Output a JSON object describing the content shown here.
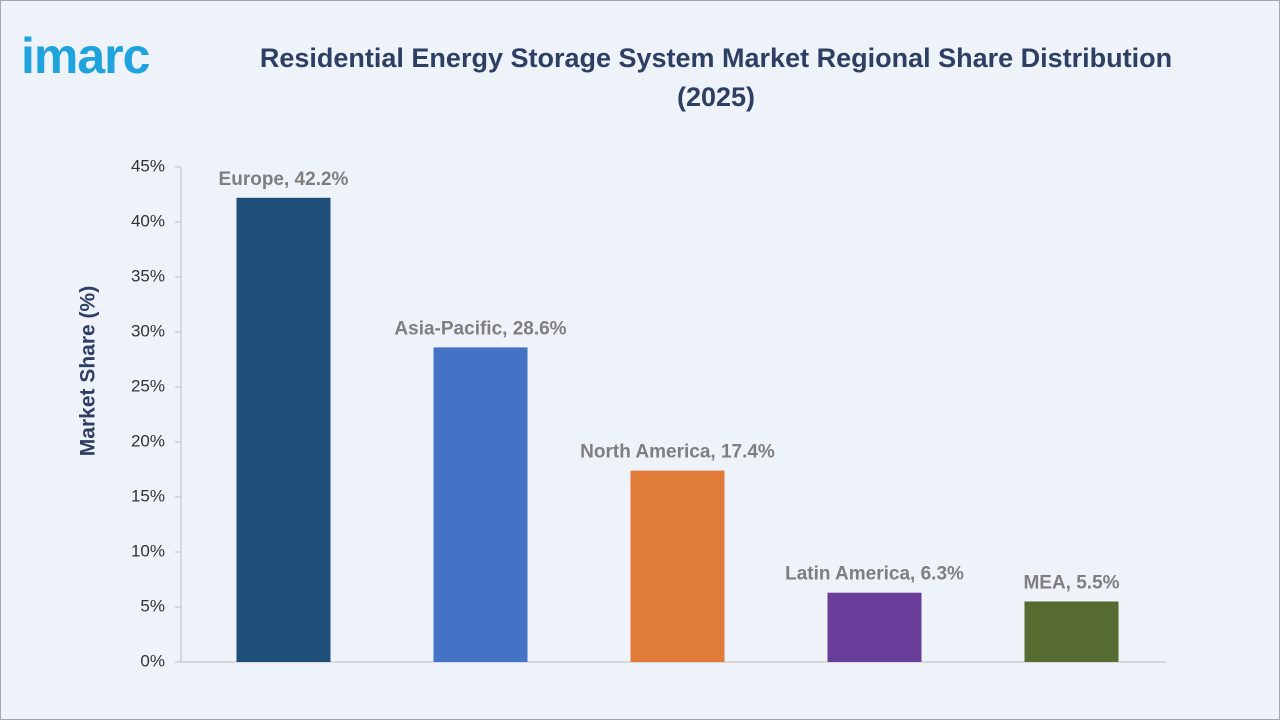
{
  "brand": "imarc",
  "chart_data": {
    "type": "bar",
    "title": "Residential Energy Storage System Market Regional Share Distribution (2025)",
    "y_label": "Market Share (%)",
    "values": [
      42.2,
      28.6,
      17.4,
      6.3,
      5.5
    ],
    "value_labels": [
      "Europe, 42.2%",
      "Asia-Pacific, 28.6%",
      "North America, 17.4%",
      "Latin America, 6.3%",
      "MEA, 5.5%"
    ],
    "colors": [
      "#1f4e79",
      "#4472c4",
      "#e07b39",
      "#6a3d9a",
      "#556b2f"
    ],
    "ylim": [
      0,
      45
    ],
    "yticks": [
      {
        "value": 0,
        "label": "0%"
      },
      {
        "value": 5,
        "label": "5%"
      },
      {
        "value": 10,
        "label": "10%"
      },
      {
        "value": 15,
        "label": "15%"
      },
      {
        "value": 20,
        "label": "20%"
      },
      {
        "value": 25,
        "label": "25%"
      },
      {
        "value": 30,
        "label": "30%"
      },
      {
        "value": 35,
        "label": "35%"
      },
      {
        "value": 40,
        "label": "40%"
      },
      {
        "value": 45,
        "label": "45%"
      }
    ],
    "grid": false
  }
}
